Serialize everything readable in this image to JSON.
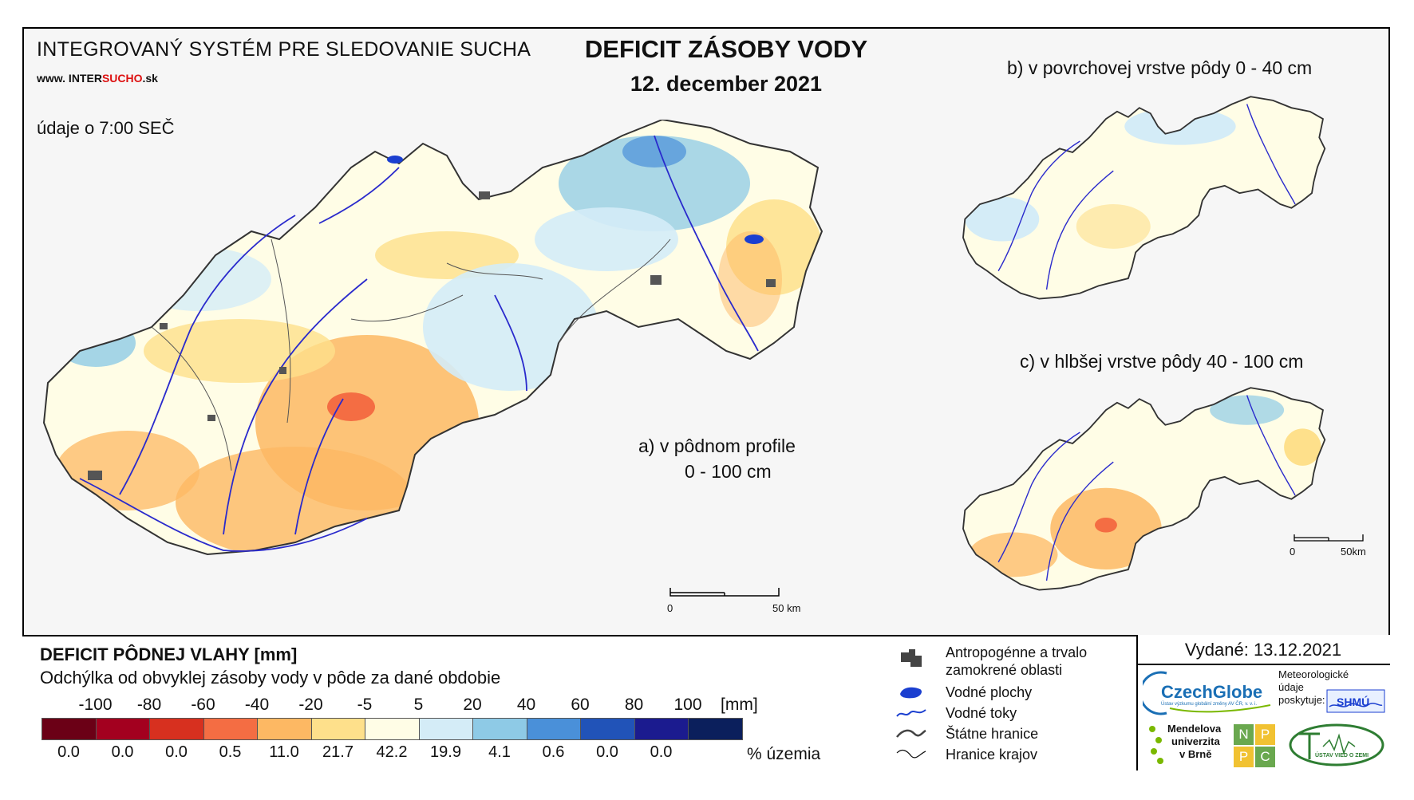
{
  "header": {
    "system_title": "INTEGROVANÝ SYSTÉM PRE SLEDOVANIE SUCHA",
    "url_prefix": "www. INTER",
    "url_red": "SUCHO",
    "url_suffix": ".sk",
    "time_note": "údaje o 7:00 SEČ",
    "main_title": "DEFICIT ZÁSOBY VODY",
    "date": "12. december 2021"
  },
  "maps": {
    "a_caption_line1": "a) v pôdnom profile",
    "a_caption_line2": "0 - 100 cm",
    "b_title": "b) v povrchovej vrstve pôdy 0 - 40 cm",
    "c_title": "c) v hlbšej vrstve pôdy 40 - 100 cm",
    "scale_main_zero": "0",
    "scale_main_end": "50 km",
    "scale_small_zero": "0",
    "scale_small_end": "50km"
  },
  "legend": {
    "title": "DEFICIT PÔDNEJ VLAHY [mm]",
    "subtitle": "Odchýlka od obvyklej zásoby vody v pôde za dané obdobie",
    "ticks": [
      "-100",
      "-80",
      "-60",
      "-40",
      "-20",
      "-5",
      "5",
      "20",
      "40",
      "60",
      "80",
      "100"
    ],
    "unit": "[mm]",
    "colors": [
      "#6b0016",
      "#a3001f",
      "#d7301f",
      "#f46d43",
      "#fdb863",
      "#fee08b",
      "#fffde6",
      "#d4ecf7",
      "#8ecae6",
      "#4a90d9",
      "#2153b8",
      "#1b1b8f",
      "#0b1f5c"
    ],
    "percentages": [
      "0.0",
      "0.0",
      "0.0",
      "0.5",
      "11.0",
      "21.7",
      "42.2",
      "19.9",
      "4.1",
      "0.6",
      "0.0",
      "0.0"
    ],
    "percent_unit": "% územia"
  },
  "symbols": {
    "items": [
      {
        "label_line1": "Antropogénne a trvalo",
        "label_line2": "zamokrené oblasti",
        "icon": "urban-area-icon"
      },
      {
        "label_line1": "Vodné plochy",
        "icon": "water-body-icon"
      },
      {
        "label_line1": "Vodné toky",
        "icon": "river-icon"
      },
      {
        "label_line1": "Štátne hranice",
        "icon": "state-border-icon"
      },
      {
        "label_line1": "Hranice krajov",
        "icon": "region-border-icon"
      }
    ]
  },
  "issued": {
    "text": "Vydané: 13.12.2021"
  },
  "logos": {
    "czechglobe": "CzechGlobe",
    "czechglobe_sub": "Ústav výzkumu globální změny AV ČR, v. v. i.",
    "shmu_line1": "Meteorologické",
    "shmu_line2": "údaje",
    "shmu_line3": "poskytuje:",
    "shmu": "SHMÚ",
    "mendel_line1": "Mendelova",
    "mendel_line2": "univerzita",
    "mendel_line3": "v Brně",
    "nppc_n": "N",
    "nppc_p1": "P",
    "nppc_p2": "P",
    "nppc_c": "C",
    "uvz": "ÚSTAV VIED O ZEMI"
  }
}
